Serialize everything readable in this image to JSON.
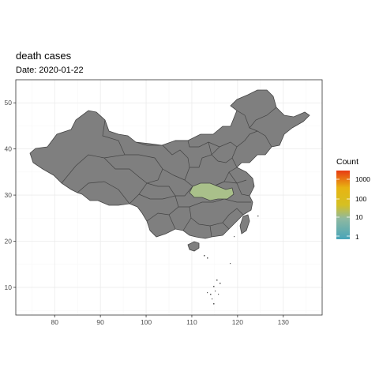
{
  "title": "death cases",
  "subtitle": "Date: 2020-01-22",
  "map": {
    "region": "China provinces",
    "x_range": [
      71.5,
      138.5
    ],
    "y_range": [
      4.0,
      55.0
    ],
    "x_ticks": [
      "80",
      "90",
      "100",
      "110",
      "120",
      "130"
    ],
    "y_ticks": [
      "10",
      "20",
      "30",
      "40",
      "50"
    ],
    "grid": true,
    "default_fill": "#7f7f7f",
    "border_color": "#444444",
    "highlighted_region": {
      "fill": "#a9c08a"
    }
  },
  "legend": {
    "title": "Count",
    "labels": [
      "1000",
      "100",
      "10",
      "1"
    ],
    "colors": [
      "#e83a12",
      "#e8b412",
      "#bfc030",
      "#8fb9a0",
      "#47a5b9"
    ]
  },
  "colors": {
    "panel_border": "#333333",
    "grid": "#ebebeb",
    "background": "#ffffff"
  }
}
